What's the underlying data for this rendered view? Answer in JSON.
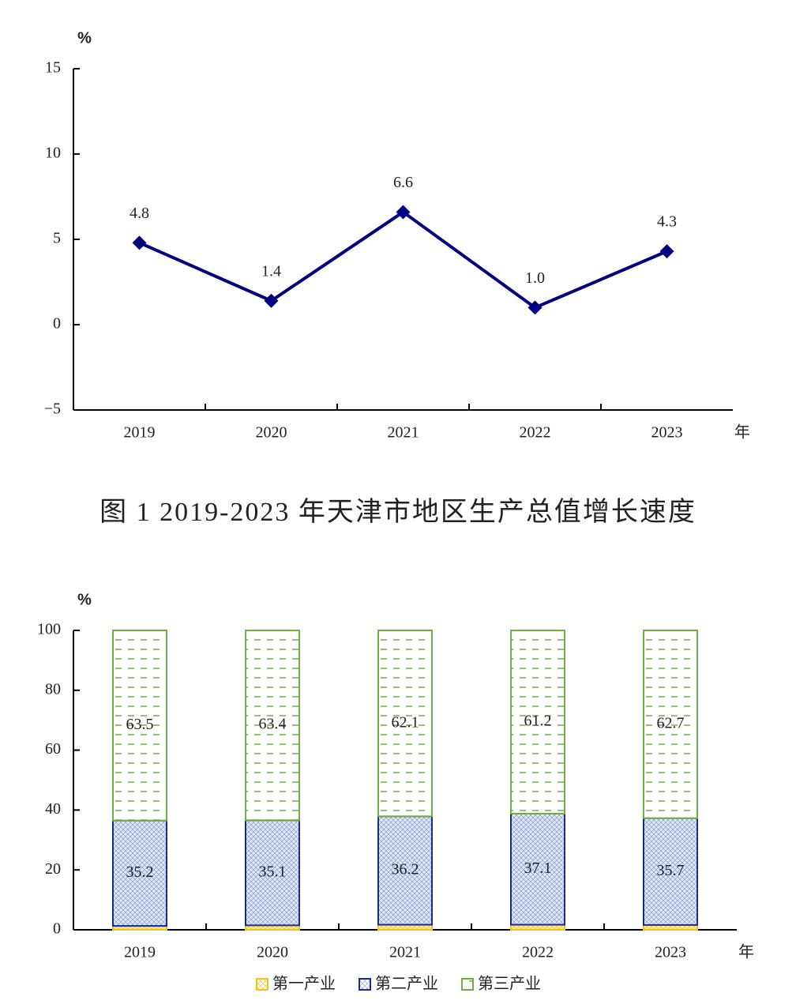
{
  "chart_data": [
    {
      "type": "line",
      "title": "图 1 2019-2023 年天津市地区生产总值增长速度",
      "y_label": "%",
      "x_label": "年",
      "categories": [
        "2019",
        "2020",
        "2021",
        "2022",
        "2023"
      ],
      "values": [
        4.8,
        1.4,
        6.6,
        1.0,
        4.3
      ],
      "value_labels": [
        "4.8",
        "1.4",
        "6.6",
        "1.0",
        "4.3"
      ],
      "color": "#000080",
      "ylim": [
        -5,
        15
      ],
      "yticks": [
        {
          "value": -5,
          "label": "−5"
        },
        0,
        5,
        10,
        15
      ]
    },
    {
      "type": "stacked_bar",
      "y_label": "%",
      "x_label": "年",
      "categories": [
        "2019",
        "2020",
        "2021",
        "2022",
        "2023"
      ],
      "series": [
        {
          "name": "第一产业",
          "color": "#f0c419",
          "values": [
            1.3,
            1.5,
            1.7,
            1.7,
            1.6
          ]
        },
        {
          "name": "第二产业",
          "color": "#1f2a8c",
          "values": [
            35.2,
            35.1,
            36.2,
            37.1,
            35.7
          ],
          "value_labels": [
            "35.2",
            "35.1",
            "36.2",
            "37.1",
            "35.7"
          ]
        },
        {
          "name": "第三产业",
          "color": "#70ad47",
          "values": [
            63.5,
            63.4,
            62.1,
            61.2,
            62.7
          ],
          "value_labels": [
            "63.5",
            "63.4",
            "62.1",
            "61.2",
            "62.7"
          ]
        }
      ],
      "ylim": [
        0,
        100
      ],
      "yticks": [
        0,
        20,
        40,
        60,
        80,
        100
      ]
    }
  ]
}
